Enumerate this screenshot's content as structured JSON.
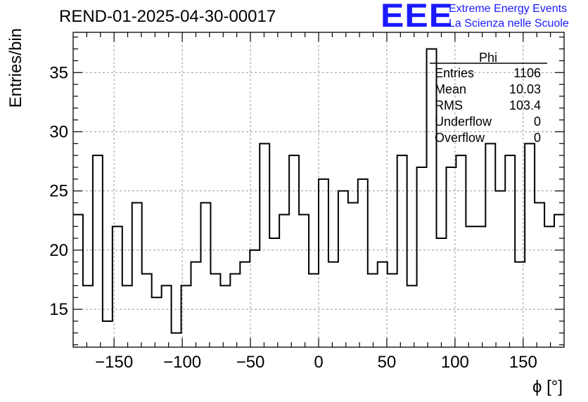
{
  "header": {
    "title": "REND-01-2025-04-30-00017",
    "logo_text": "EEE",
    "logo_line1": "Extreme Energy Events",
    "logo_line2": "La Scienza nelle Scuole"
  },
  "colors": {
    "logo": "#1a1aff",
    "histogram_line": "#000000",
    "grid": "#999999"
  },
  "chart_data": {
    "type": "bar",
    "style": "step-histogram",
    "xlabel": "ϕ [°]",
    "ylabel": "Entries/bin",
    "xlim": [
      -180,
      180
    ],
    "ylim": [
      11.8,
      38.4
    ],
    "xticks": [
      -150,
      -100,
      -50,
      0,
      50,
      100,
      150
    ],
    "xtick_labels": [
      "−150",
      "−100",
      "−50",
      "0",
      "50",
      "100",
      "150"
    ],
    "yticks": [
      15,
      20,
      25,
      30,
      35
    ],
    "grid": true,
    "bin_width": 7.2,
    "bin_low_edge": -180,
    "values": [
      23,
      17,
      28,
      14,
      22,
      17,
      24,
      18,
      16,
      17,
      13,
      17,
      19,
      24,
      18,
      17,
      18,
      19,
      20,
      29,
      21,
      23,
      28,
      23,
      18,
      26,
      19,
      25,
      24,
      26,
      18,
      19,
      18,
      28,
      17,
      27,
      37,
      21,
      27,
      28,
      22,
      22,
      29,
      25,
      28,
      19,
      29,
      24,
      22,
      23
    ],
    "stats_box": {
      "title": "Phi",
      "rows": [
        {
          "label": "Entries",
          "value": "1106"
        },
        {
          "label": "Mean",
          "value": "10.03"
        },
        {
          "label": "RMS",
          "value": "103.4"
        },
        {
          "label": "Underflow",
          "value": "0"
        },
        {
          "label": "Overflow",
          "value": "0"
        }
      ]
    }
  }
}
